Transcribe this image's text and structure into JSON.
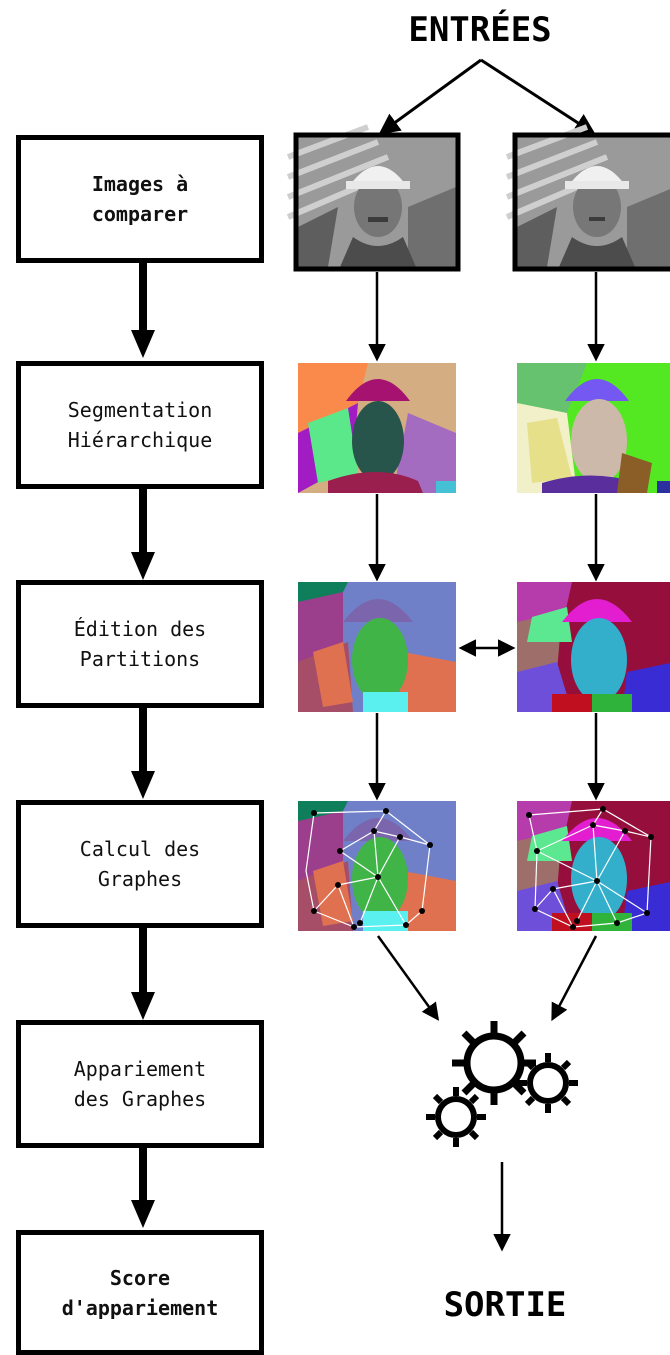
{
  "headings": {
    "input": "ENTRÉES",
    "output": "SORTIE"
  },
  "steps": [
    {
      "label": "Images à\n comparer",
      "bold": true
    },
    {
      "label": "Segmentation\nHiérarchique",
      "bold": false
    },
    {
      "label": "Édition des\nPartitions",
      "bold": false
    },
    {
      "label": "Calcul des\nGraphes",
      "bold": false
    },
    {
      "label": "Appariement\ndes Graphes",
      "bold": false
    },
    {
      "label": "Score\nd'appariement",
      "bold": true
    }
  ],
  "icons": [
    "gears-icon"
  ],
  "colors": {
    "stroke": "#000000",
    "segmentation_left": [
      "#f98a4b",
      "#a6126f",
      "#d4ad82",
      "#27544b",
      "#a21cc4",
      "#5be88a"
    ],
    "segmentation_right": [
      "#66c26f",
      "#7557f2",
      "#53e822",
      "#cdb9aa",
      "#e6e08a",
      "#5a2f9d"
    ],
    "edition_left": [
      "#0f7e5a",
      "#7b66ad",
      "#6f80c9",
      "#41b448",
      "#e07150",
      "#9b3e8c"
    ],
    "edition_right": [
      "#b73cab",
      "#e21ed0",
      "#960f3c",
      "#33afcc",
      "#6e4fd9",
      "#2fb33a"
    ]
  }
}
